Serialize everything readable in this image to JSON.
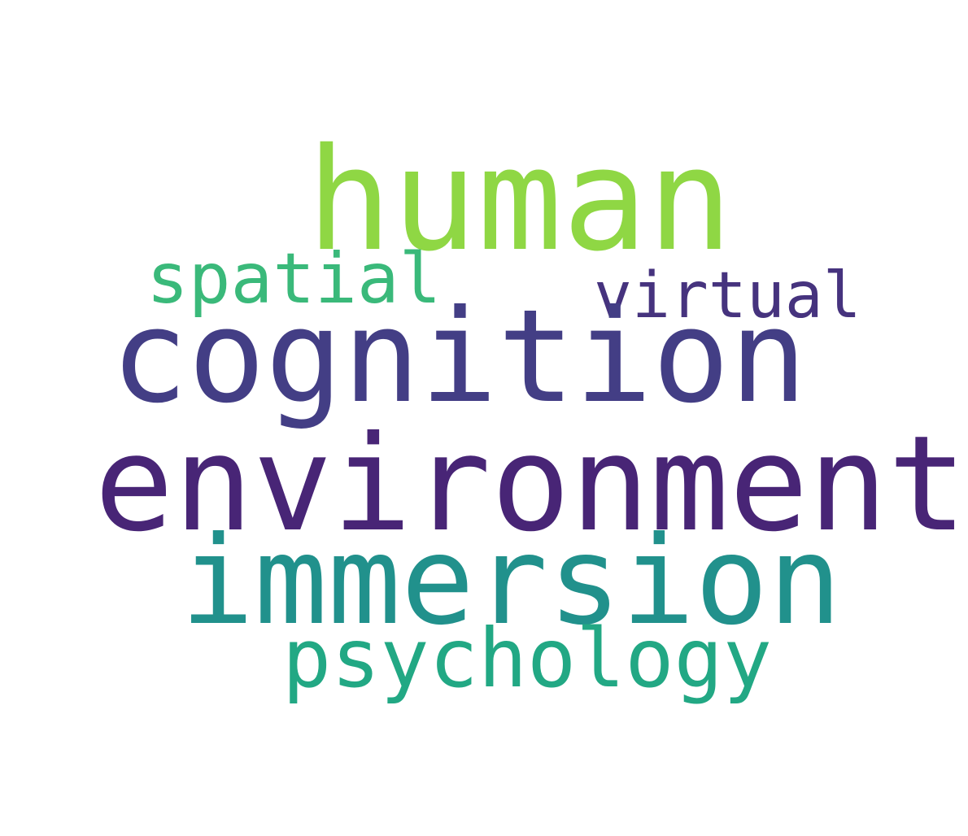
{
  "words": [
    {
      "key": "human",
      "text": "human",
      "color": "#8fd744"
    },
    {
      "key": "spatial",
      "text": "spatial",
      "color": "#3ab97a"
    },
    {
      "key": "virtual",
      "text": "virtual",
      "color": "#46337e"
    },
    {
      "key": "cognition",
      "text": "cognition",
      "color": "#433e85"
    },
    {
      "key": "environment",
      "text": "environment",
      "color": "#482576"
    },
    {
      "key": "immersion",
      "text": "immersion",
      "color": "#21918c"
    },
    {
      "key": "psychology",
      "text": "psychology",
      "color": "#22a884"
    }
  ]
}
